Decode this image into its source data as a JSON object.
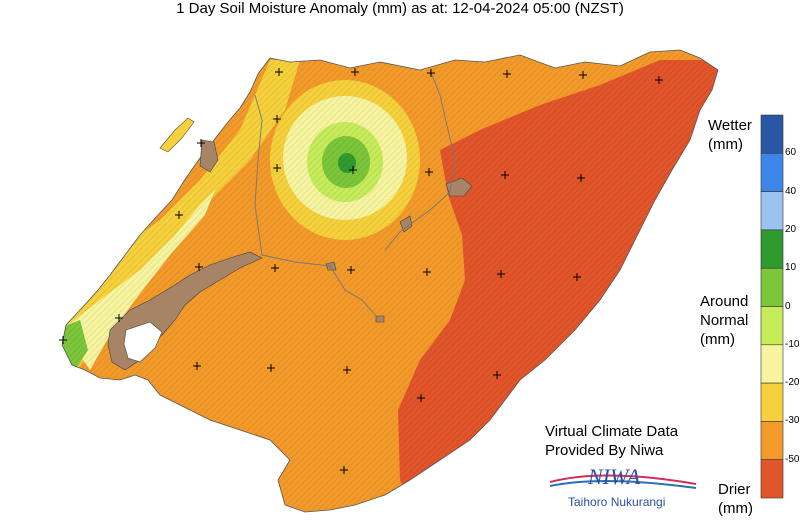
{
  "title": "1 Day Soil Moisture Anomaly (mm) as at: 12-04-2024 05:00 (NZST)",
  "legend": {
    "top_label_line1": "Wetter",
    "top_label_line2": "(mm)",
    "mid_label_line1": "Around",
    "mid_label_line2": "Normal",
    "mid_label_line3": "(mm)",
    "bottom_label_line1": "Drier",
    "bottom_label_line2": "(mm)",
    "bands": [
      {
        "color": "#2a57a5"
      },
      {
        "color": "#3b86e8"
      },
      {
        "color": "#9cc3f0"
      },
      {
        "color": "#2f9a2f"
      },
      {
        "color": "#7cc63a"
      },
      {
        "color": "#c6ec5a"
      },
      {
        "color": "#f7f4a0"
      },
      {
        "color": "#f6d13c"
      },
      {
        "color": "#f39a2a"
      },
      {
        "color": "#e2552a"
      }
    ],
    "ticks": [
      "60",
      "40",
      "20",
      "10",
      "0",
      "-10",
      "-20",
      "-30",
      "-50"
    ]
  },
  "credit": {
    "line1": "Virtual Climate Data",
    "line2": "Provided By Niwa",
    "logo_text": "NIWA",
    "logo_subtext": "Taihoro Nukurangi"
  },
  "colors": {
    "drier_red": "#e2552a",
    "dry_orange": "#f39a2a",
    "yellow": "#f6d13c",
    "pale_yellow": "#f7f4a0",
    "light_green": "#c6ec5a",
    "green": "#7cc63a",
    "dark_green": "#2f9a2f",
    "lake_brown": "#a88466"
  }
}
